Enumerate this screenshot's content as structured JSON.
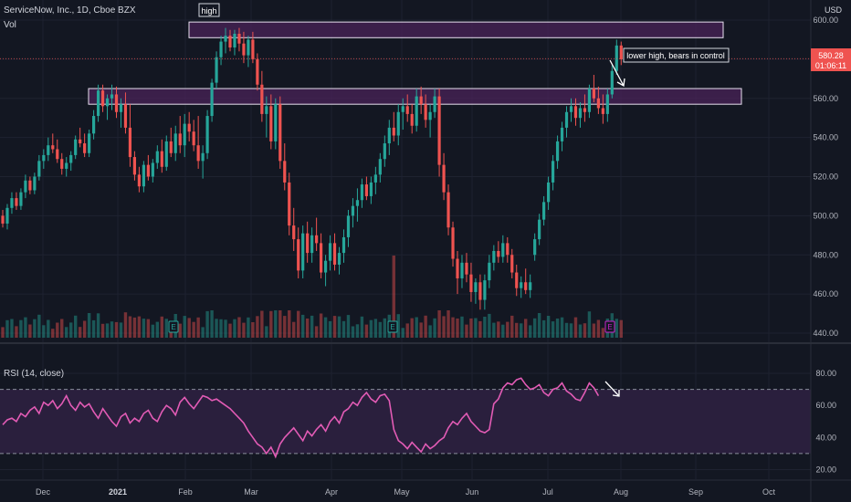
{
  "header": {
    "symbol": "ServiceNow, Inc., 1D, Cboe BZX",
    "vol_label": "Vol",
    "currency": "USD",
    "last_price": "580.28",
    "countdown": "01:06:11"
  },
  "annotations": {
    "high_label": "high",
    "lower_high_label": "lower high, bears in control"
  },
  "rsi_panel": {
    "label": "RSI (14, close)",
    "y_ticks": [
      "80.00",
      "60.00",
      "40.00",
      "20.00"
    ],
    "levels": [
      70,
      30
    ]
  },
  "price_axis": {
    "ticks": [
      "600.00",
      "580.00",
      "560.00",
      "540.00",
      "520.00",
      "500.00",
      "480.00",
      "460.00",
      "440.00"
    ]
  },
  "time_axis": {
    "labels": [
      "Dec",
      "2021",
      "Feb",
      "Mar",
      "Apr",
      "May",
      "Jun",
      "Jul",
      "Aug",
      "Sep",
      "Oct"
    ]
  },
  "earnings_markers": [
    "E",
    "E",
    "E"
  ],
  "colors": {
    "up": "#26a69a",
    "down": "#ef5350",
    "zone_fill": "#4a2358",
    "zone_border": "#e8e0f0",
    "rsi_line": "#e25bb5",
    "rsi_band": "#2a1f3d",
    "earnings_upcoming": "#c724c9"
  },
  "chart_data": {
    "type": "candlestick",
    "zones": [
      {
        "name": "high",
        "from": 591,
        "to": 599
      },
      {
        "name": "",
        "from": 557,
        "to": 565
      }
    ],
    "price_range": [
      440,
      607
    ],
    "rsi_range": [
      14,
      88
    ],
    "rsi": [
      48,
      51,
      52,
      50,
      55,
      53,
      57,
      59,
      55,
      62,
      60,
      63,
      58,
      61,
      66,
      60,
      57,
      62,
      59,
      61,
      56,
      52,
      58,
      54,
      50,
      47,
      53,
      55,
      49,
      52,
      50,
      55,
      57,
      52,
      50,
      56,
      60,
      58,
      54,
      62,
      65,
      61,
      58,
      62,
      66,
      65,
      63,
      64,
      62,
      60,
      58,
      55,
      52,
      49,
      44,
      40,
      36,
      34,
      30,
      34,
      28,
      36,
      40,
      43,
      46,
      42,
      38,
      44,
      41,
      45,
      48,
      44,
      50,
      53,
      49,
      56,
      58,
      62,
      60,
      65,
      68,
      64,
      62,
      66,
      67,
      63,
      45,
      38,
      36,
      33,
      37,
      34,
      31,
      36,
      33,
      35,
      38,
      40,
      46,
      50,
      48,
      52,
      55,
      50,
      47,
      44,
      43,
      45,
      61,
      64,
      71,
      74,
      73,
      76,
      77,
      73,
      70,
      71,
      73,
      68,
      66,
      70,
      71,
      74,
      69,
      67,
      64,
      63,
      68,
      74,
      71,
      66
    ],
    "ohlc": [
      [
        500,
        503,
        494,
        496
      ],
      [
        496,
        506,
        493,
        504
      ],
      [
        504,
        512,
        501,
        509
      ],
      [
        509,
        512,
        503,
        505
      ],
      [
        505,
        514,
        503,
        512
      ],
      [
        512,
        521,
        509,
        518
      ],
      [
        518,
        520,
        511,
        513
      ],
      [
        513,
        522,
        511,
        520
      ],
      [
        520,
        531,
        518,
        528
      ],
      [
        528,
        534,
        524,
        531
      ],
      [
        531,
        540,
        528,
        536
      ],
      [
        536,
        542,
        532,
        534
      ],
      [
        534,
        539,
        527,
        529
      ],
      [
        529,
        532,
        521,
        524
      ],
      [
        524,
        530,
        520,
        527
      ],
      [
        527,
        533,
        523,
        531
      ],
      [
        531,
        541,
        529,
        539
      ],
      [
        539,
        545,
        535,
        537
      ],
      [
        537,
        542,
        530,
        532
      ],
      [
        532,
        544,
        530,
        542
      ],
      [
        542,
        554,
        539,
        551
      ],
      [
        551,
        567,
        548,
        564
      ],
      [
        564,
        567,
        553,
        556
      ],
      [
        556,
        562,
        549,
        560
      ],
      [
        560,
        567,
        554,
        562
      ],
      [
        562,
        566,
        550,
        553
      ],
      [
        553,
        560,
        545,
        557
      ],
      [
        557,
        563,
        542,
        545
      ],
      [
        545,
        557,
        525,
        530
      ],
      [
        530,
        533,
        518,
        521
      ],
      [
        521,
        525,
        512,
        515
      ],
      [
        515,
        528,
        512,
        526
      ],
      [
        526,
        531,
        518,
        520
      ],
      [
        520,
        529,
        517,
        527
      ],
      [
        527,
        536,
        524,
        533
      ],
      [
        533,
        539,
        522,
        525
      ],
      [
        525,
        541,
        523,
        538
      ],
      [
        538,
        545,
        530,
        532
      ],
      [
        532,
        546,
        528,
        542
      ],
      [
        542,
        551,
        532,
        536
      ],
      [
        536,
        552,
        530,
        547
      ],
      [
        547,
        553,
        538,
        543
      ],
      [
        543,
        549,
        533,
        536
      ],
      [
        536,
        551,
        524,
        528
      ],
      [
        528,
        536,
        519,
        532
      ],
      [
        532,
        554,
        529,
        551
      ],
      [
        551,
        570,
        548,
        568
      ],
      [
        568,
        584,
        565,
        581
      ],
      [
        581,
        592,
        577,
        589
      ],
      [
        589,
        596,
        583,
        592
      ],
      [
        592,
        595,
        584,
        586
      ],
      [
        586,
        595,
        582,
        593
      ],
      [
        593,
        596,
        584,
        588
      ],
      [
        588,
        594,
        578,
        582
      ],
      [
        582,
        592,
        576,
        590
      ],
      [
        590,
        594,
        578,
        580
      ],
      [
        580,
        583,
        564,
        567
      ],
      [
        567,
        574,
        548,
        552
      ],
      [
        552,
        561,
        540,
        556
      ],
      [
        556,
        562,
        534,
        538
      ],
      [
        538,
        560,
        534,
        557
      ],
      [
        557,
        561,
        524,
        528
      ],
      [
        528,
        537,
        513,
        517
      ],
      [
        517,
        522,
        490,
        495
      ],
      [
        495,
        504,
        482,
        488
      ],
      [
        488,
        494,
        468,
        472
      ],
      [
        472,
        495,
        468,
        491
      ],
      [
        491,
        497,
        476,
        481
      ],
      [
        481,
        494,
        476,
        490
      ],
      [
        490,
        499,
        482,
        486
      ],
      [
        486,
        491,
        468,
        471
      ],
      [
        471,
        480,
        464,
        477
      ],
      [
        477,
        490,
        472,
        486
      ],
      [
        486,
        491,
        472,
        475
      ],
      [
        475,
        484,
        470,
        481
      ],
      [
        481,
        493,
        476,
        489
      ],
      [
        489,
        503,
        484,
        500
      ],
      [
        500,
        509,
        494,
        505
      ],
      [
        505,
        514,
        497,
        508
      ],
      [
        508,
        519,
        504,
        516
      ],
      [
        516,
        520,
        508,
        510
      ],
      [
        510,
        520,
        506,
        517
      ],
      [
        517,
        525,
        511,
        521
      ],
      [
        521,
        532,
        517,
        529
      ],
      [
        529,
        541,
        525,
        537
      ],
      [
        537,
        549,
        531,
        545
      ],
      [
        545,
        553,
        538,
        541
      ],
      [
        541,
        557,
        536,
        553
      ],
      [
        553,
        560,
        544,
        556
      ],
      [
        556,
        562,
        548,
        552
      ],
      [
        552,
        557,
        542,
        546
      ],
      [
        546,
        565,
        543,
        561
      ],
      [
        561,
        566,
        552,
        557
      ],
      [
        557,
        562,
        545,
        549
      ],
      [
        549,
        557,
        540,
        553
      ],
      [
        553,
        565,
        550,
        561
      ],
      [
        561,
        565,
        520,
        526
      ],
      [
        526,
        532,
        508,
        512
      ],
      [
        512,
        516,
        490,
        494
      ],
      [
        494,
        497,
        474,
        478
      ],
      [
        478,
        482,
        460,
        468
      ],
      [
        468,
        480,
        463,
        476
      ],
      [
        476,
        481,
        466,
        470
      ],
      [
        470,
        476,
        456,
        461
      ],
      [
        461,
        468,
        455,
        466
      ],
      [
        466,
        470,
        452,
        457
      ],
      [
        457,
        470,
        452,
        467
      ],
      [
        467,
        480,
        463,
        476
      ],
      [
        476,
        485,
        472,
        482
      ],
      [
        482,
        487,
        476,
        479
      ],
      [
        479,
        490,
        476,
        486
      ],
      [
        486,
        489,
        476,
        480
      ],
      [
        480,
        483,
        468,
        471
      ],
      [
        471,
        475,
        459,
        463
      ],
      [
        463,
        469,
        458,
        466
      ],
      [
        466,
        473,
        460,
        462
      ],
      [
        462,
        470,
        458,
        466
      ],
      [
        480,
        491,
        477,
        488
      ],
      [
        488,
        501,
        485,
        498
      ],
      [
        498,
        510,
        495,
        507
      ],
      [
        507,
        520,
        503,
        517
      ],
      [
        517,
        531,
        513,
        528
      ],
      [
        528,
        541,
        524,
        538
      ],
      [
        538,
        548,
        533,
        545
      ],
      [
        545,
        556,
        540,
        553
      ],
      [
        553,
        560,
        548,
        556
      ],
      [
        556,
        560,
        546,
        550
      ],
      [
        550,
        558,
        545,
        555
      ],
      [
        555,
        562,
        548,
        553
      ],
      [
        553,
        567,
        550,
        565
      ],
      [
        565,
        572,
        558,
        560
      ],
      [
        560,
        566,
        552,
        555
      ],
      [
        555,
        562,
        547,
        552
      ],
      [
        552,
        565,
        548,
        562
      ],
      [
        562,
        577,
        560,
        574
      ],
      [
        574,
        590,
        572,
        587
      ],
      [
        587,
        589,
        577,
        580
      ]
    ]
  }
}
